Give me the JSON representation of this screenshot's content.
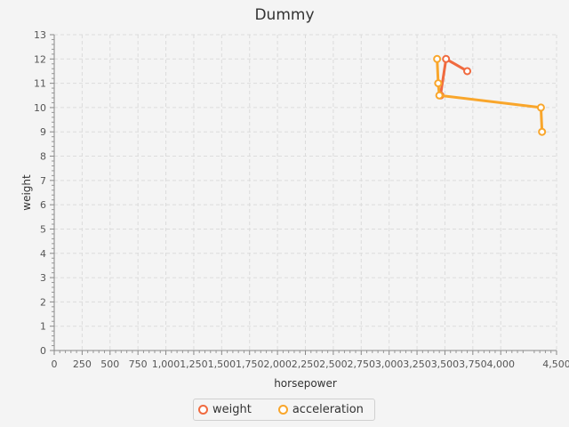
{
  "chart_data": {
    "type": "line",
    "title": "Dummy",
    "xlabel": "horsepower",
    "ylabel": "weight",
    "xlim": [
      0,
      4500
    ],
    "ylim": [
      0,
      13
    ],
    "x_ticks": [
      0,
      250,
      500,
      750,
      1000,
      1250,
      1500,
      1750,
      2000,
      2250,
      2500,
      2750,
      3000,
      3250,
      3500,
      3750,
      4000,
      4500
    ],
    "x_tick_labels": [
      "0",
      "250",
      "500",
      "750",
      "1,000",
      "1,250",
      "1,500",
      "1,750",
      "2,000",
      "2,250",
      "2,500",
      "2,750",
      "3,000",
      "3,250",
      "3,500",
      "3,750",
      "4,000",
      "4,500"
    ],
    "y_ticks": [
      0,
      1,
      2,
      3,
      4,
      5,
      6,
      7,
      8,
      9,
      10,
      11,
      12,
      13
    ],
    "grid": true,
    "legend": "bottom",
    "series": [
      {
        "name": "weight",
        "color": "#f06a3f",
        "points": [
          [
            3700,
            11.5
          ],
          [
            3510,
            12
          ],
          [
            3460,
            10.5
          ]
        ]
      },
      {
        "name": "acceleration",
        "color": "#f9a62b",
        "points": [
          [
            3430,
            12
          ],
          [
            3440,
            11
          ],
          [
            3450,
            10.5
          ],
          [
            4360,
            10
          ],
          [
            4370,
            9
          ]
        ]
      }
    ]
  }
}
